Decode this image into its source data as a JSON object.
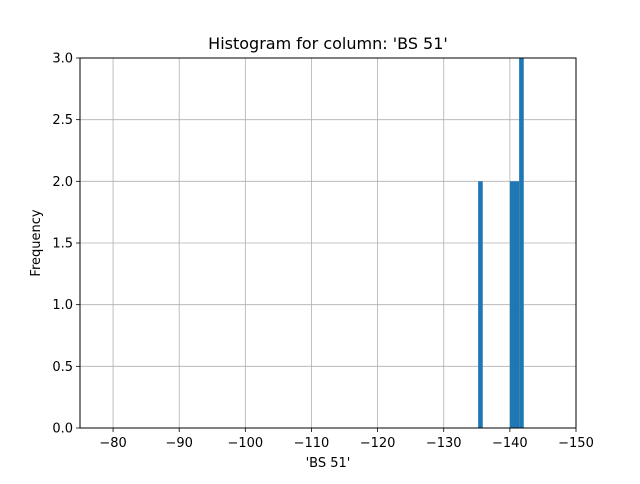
{
  "chart_data": {
    "type": "bar",
    "title": "Histogram for column: 'BS 51'",
    "xlabel": "'BS 51'",
    "ylabel": "Frequency",
    "x_axis_inverted": true,
    "xlim": [
      -75,
      -150
    ],
    "ylim": [
      0,
      3.0
    ],
    "grid": true,
    "x_ticks": [
      -80,
      -90,
      -100,
      -110,
      -120,
      -130,
      -140,
      -150
    ],
    "x_tick_labels": [
      "−80",
      "−90",
      "−100",
      "−110",
      "−120",
      "−130",
      "−140",
      "−150"
    ],
    "y_ticks": [
      0.0,
      0.5,
      1.0,
      1.5,
      2.0,
      2.5,
      3.0
    ],
    "y_tick_labels": [
      "0.0",
      "0.5",
      "1.0",
      "1.5",
      "2.0",
      "2.5",
      "3.0"
    ],
    "bar_color": "#1f77b4",
    "bins": [
      {
        "x_start": -135.2,
        "x_end": -135.9,
        "count": 2
      },
      {
        "x_start": -140.0,
        "x_end": -140.7,
        "count": 2
      },
      {
        "x_start": -140.7,
        "x_end": -141.4,
        "count": 2
      },
      {
        "x_start": -141.4,
        "x_end": -142.1,
        "count": 3
      }
    ]
  }
}
